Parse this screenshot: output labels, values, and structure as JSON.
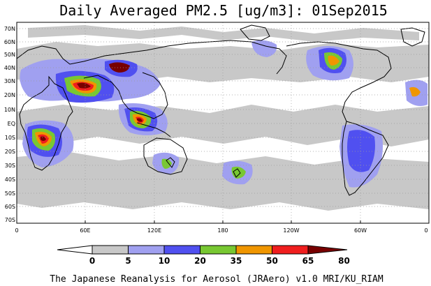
{
  "title": "Daily Averaged PM2.5 [ug/m3]: 01Sep2015",
  "credit": "The Japanese Reanalysis for Aerosol (JRAero) v1.0 MRI/KU_RIAM",
  "map": {
    "lat_labels": [
      "70N",
      "60N",
      "50N",
      "40N",
      "30N",
      "20N",
      "10N",
      "EQ",
      "10S",
      "20S",
      "30S",
      "40S",
      "50S",
      "60S",
      "70S"
    ],
    "lon_labels": [
      "0",
      "60E",
      "120E",
      "180",
      "120W",
      "60W",
      "0"
    ]
  },
  "legend": {
    "labels": [
      "0",
      "5",
      "10",
      "20",
      "35",
      "50",
      "65",
      "80"
    ],
    "colors": [
      "#ffffff",
      "#c8c8c8",
      "#a0a0f0",
      "#5050f0",
      "#78c832",
      "#f09600",
      "#f01e1e",
      "#780000"
    ]
  }
}
